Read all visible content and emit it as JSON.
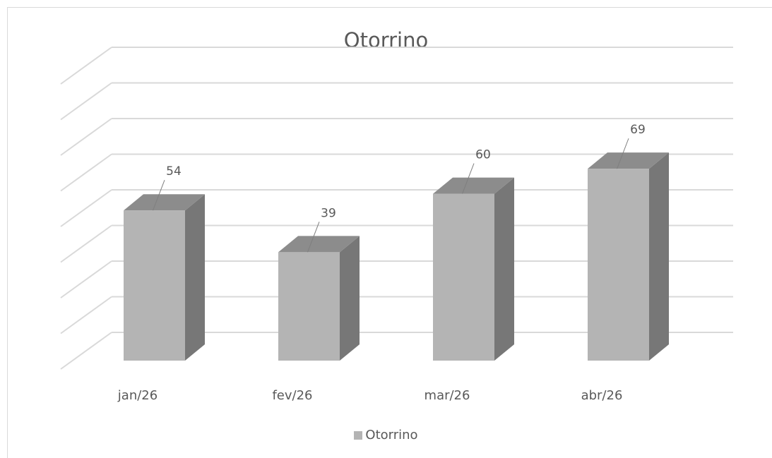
{
  "chart_data": {
    "type": "bar",
    "title": "Otorrino",
    "categories": [
      "jan/26",
      "fev/26",
      "mar/26",
      "abr/26"
    ],
    "series": [
      {
        "name": "Otorrino",
        "values": [
          54,
          39,
          60,
          69
        ]
      }
    ],
    "ylim": [
      0,
      70
    ],
    "grid": true,
    "legend_position": "bottom",
    "colors": {
      "front": "#b4b4b4",
      "side": "#777777",
      "top": "#8c8c8c",
      "grid": "#d9d9d9",
      "text": "#595959",
      "leader": "#7f7f7f"
    }
  }
}
